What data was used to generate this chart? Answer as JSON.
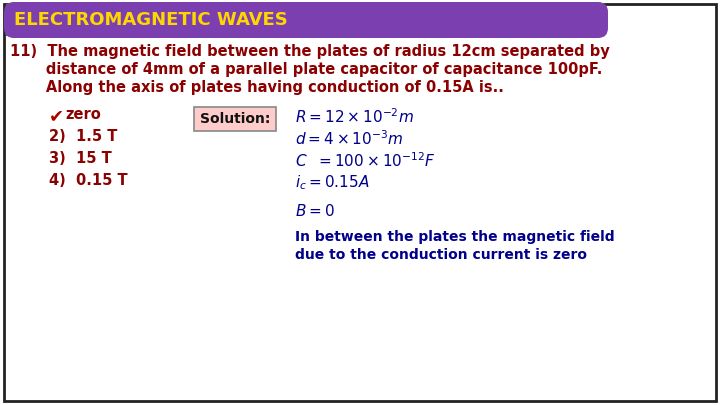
{
  "title": "ELECTROMAGNETIC WAVES",
  "title_bg": "#7B3FAF",
  "title_color": "#FFD700",
  "bg_color": "#FFFFFF",
  "border_color": "#222222",
  "question_color": "#8B0000",
  "question_line1": "11)  The magnetic field between the plates of radius 12cm separated by",
  "question_line2": "       distance of 4mm of a parallel plate capacitor of capacitance 100pF.",
  "question_line3": "       Along the axis of plates having conduction of 0.15A is..",
  "option1_check": "1)",
  "option1_text": "zero",
  "option2": "2)  1.5 T",
  "option3": "3)  15 T",
  "option4": "4)  0.15 T",
  "solution_label": "Solution:",
  "solution_box_fill": "#FFCCCC",
  "solution_box_edge": "#888888",
  "eq_color": "#00008B",
  "eq1": "R = 12×10",
  "eq1_exp": "-2",
  "eq1_unit": "m",
  "eq2": "d = 4×10",
  "eq2_exp": "-3",
  "eq2_unit": "m",
  "eq3": "C  = 100×10",
  "eq3_exp": "-12",
  "eq3_unit": "F",
  "eq4_pre": "i",
  "eq4_sub": "c",
  "eq4_post": " = 0.15A",
  "b_zero": "B = 0",
  "concl1": "In between the plates the magnetic field",
  "concl2": "due to the conduction current is zero",
  "fs_title": 13,
  "fs_question": 10.5,
  "fs_option": 10.5,
  "fs_sol_label": 10,
  "fs_eq": 11,
  "fs_concl": 10
}
